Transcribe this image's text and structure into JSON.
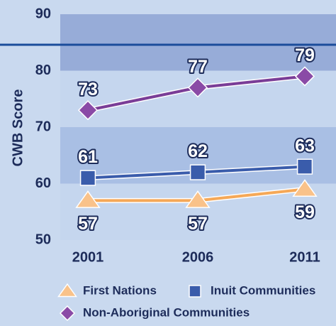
{
  "chart_data": {
    "type": "line",
    "y_label": "CWB Score",
    "categories": [
      "2001",
      "2006",
      "2011"
    ],
    "series": [
      {
        "name": "First Nations",
        "color": "#f5a857",
        "marker": "triangle",
        "marker_color": "#f9c28a",
        "label_position": "below",
        "values": [
          57,
          57,
          59
        ]
      },
      {
        "name": "Inuit Communities",
        "color": "#3a5cab",
        "marker": "square",
        "marker_color": "#3a5cab",
        "label_position": "above",
        "values": [
          61,
          62,
          63
        ]
      },
      {
        "name": "Non-Aboriginal Communities",
        "color": "#7a3d97",
        "marker": "diamond",
        "marker_color": "#8a4aa6",
        "label_position": "above",
        "values": [
          73,
          77,
          79
        ]
      }
    ],
    "ylim": [
      50,
      90
    ],
    "yticks": [
      50,
      60,
      70,
      80,
      90
    ],
    "grid": true
  }
}
